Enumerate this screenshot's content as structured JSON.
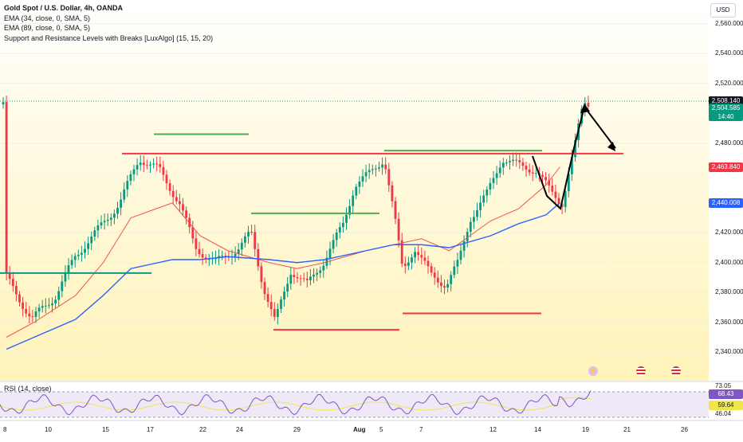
{
  "header": {
    "symbol_title": "Gold Spot / U.S. Dollar, 4h, OANDA",
    "indicators": [
      "EMA (34, close, 0, SMA, 5)",
      "EMA (89, close, 0, SMA, 5)",
      "Support and Resistance Levels with Breaks [LuxAlgo] (15, 15, 20)"
    ],
    "currency_button": "USD"
  },
  "rsi_panel": {
    "label": "RSI (14, close)",
    "axis_ticks": [
      "73.05",
      "46.04"
    ],
    "tags": [
      {
        "text": "68.43",
        "color": "#7e57c2"
      },
      {
        "text": "59.64",
        "color": "#f0e64b"
      }
    ]
  },
  "price_axis": {
    "ticks": [
      "2,560.000",
      "2,540.000",
      "2,520.000",
      "2,480.000",
      "2,420.000",
      "2,400.000",
      "2,380.000",
      "2,360.000",
      "2,340.000"
    ],
    "tick_values": [
      2560,
      2540,
      2520,
      2480,
      2420,
      2400,
      2380,
      2360,
      2340
    ]
  },
  "price_tags": [
    {
      "text": "2,508.140",
      "value": 2508.14,
      "bg": "#131722",
      "fg": "#ffffff"
    },
    {
      "text": "2,504.585",
      "value": 2504.585,
      "bg": "#089981",
      "fg": "#ffffff",
      "sub": "14:40"
    },
    {
      "text": "2,463.840",
      "value": 2463.84,
      "bg": "#f23645",
      "fg": "#ffffff"
    },
    {
      "text": "2,440.008",
      "value": 2440.008,
      "bg": "#2962ff",
      "fg": "#ffffff"
    }
  ],
  "time_axis": {
    "labels": [
      "8",
      "10",
      "15",
      "17",
      "22",
      "24",
      "29",
      "Aug",
      "5",
      "7",
      "12",
      "14",
      "19",
      "21",
      "26"
    ],
    "bold": [
      "Aug"
    ]
  },
  "chart_data": {
    "type": "line",
    "title": "Gold Spot / U.S. Dollar, 4h, OANDA",
    "ylim": [
      2330,
      2570
    ],
    "grid": true,
    "series": [
      {
        "name": "EMA (34, close, 0, SMA, 5)",
        "color": "#ef5350",
        "x": [
          "Jul 8",
          "Jul 10",
          "Jul 13",
          "Jul 15",
          "Jul 17",
          "Jul 20",
          "Jul 22",
          "Jul 24",
          "Jul 27",
          "Jul 29",
          "Jul 31",
          "Aug 3",
          "Aug 5",
          "Aug 7",
          "Aug 9",
          "Aug 12",
          "Aug 14",
          "Aug 16",
          "Aug 17"
        ],
        "values": [
          2350,
          2360,
          2378,
          2400,
          2430,
          2440,
          2418,
          2408,
          2400,
          2396,
          2400,
          2408,
          2412,
          2416,
          2408,
          2428,
          2436,
          2452,
          2464
        ]
      },
      {
        "name": "EMA (89, close, 0, SMA, 5)",
        "color": "#2962ff",
        "x": [
          "Jul 8",
          "Jul 10",
          "Jul 13",
          "Jul 15",
          "Jul 17",
          "Jul 20",
          "Jul 22",
          "Jul 24",
          "Jul 27",
          "Jul 29",
          "Jul 31",
          "Aug 3",
          "Aug 5",
          "Aug 7",
          "Aug 9",
          "Aug 12",
          "Aug 14",
          "Aug 16",
          "Aug 17"
        ],
        "values": [
          2342,
          2350,
          2362,
          2378,
          2396,
          2402,
          2402,
          2404,
          2402,
          2400,
          2402,
          2408,
          2412,
          2412,
          2410,
          2418,
          2426,
          2432,
          2440
        ]
      }
    ],
    "levels": [
      {
        "kind": "resistance",
        "value": 2473,
        "color": "#f23645"
      },
      {
        "kind": "support",
        "value": 2393,
        "color": "#089981"
      },
      {
        "kind": "support",
        "value": 2486,
        "color": "#4caf50"
      },
      {
        "kind": "support",
        "value": 2433,
        "color": "#4caf50"
      },
      {
        "kind": "support",
        "value": 2475,
        "color": "#4caf50"
      },
      {
        "kind": "resistance",
        "value": 2355,
        "color": "#f23645"
      },
      {
        "kind": "resistance",
        "value": 2366,
        "color": "#f23645"
      }
    ],
    "last_price": 2508.14,
    "rsi": {
      "last": 68.43,
      "ma": 59.64,
      "upper": 73.05,
      "lower": 46.04
    }
  }
}
